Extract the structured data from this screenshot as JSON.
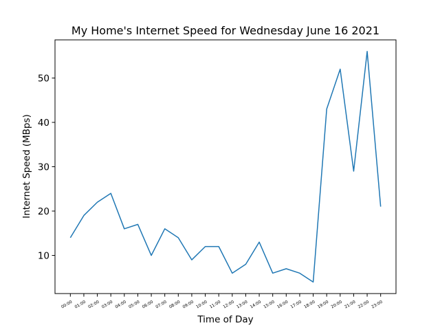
{
  "chart_data": {
    "type": "line",
    "title": "My Home's Internet Speed for Wednesday June 16 2021",
    "xlabel": "Time of Day",
    "ylabel": "Internet Speed (MBps)",
    "categories": [
      "00:00",
      "01:00",
      "02:00",
      "03:00",
      "04:00",
      "05:00",
      "06:00",
      "07:00",
      "08:00",
      "09:00",
      "10:00",
      "11:00",
      "12:00",
      "13:00",
      "14:00",
      "15:00",
      "16:00",
      "17:00",
      "18:00",
      "19:00",
      "20:00",
      "21:00",
      "22:00",
      "23:00"
    ],
    "series": [
      {
        "values": [
          14,
          19,
          22,
          24,
          16,
          17,
          10,
          16,
          14,
          9,
          12,
          12,
          6,
          8,
          13,
          6,
          7,
          6,
          4,
          43,
          52,
          29,
          56,
          21
        ],
        "color": "#1f77b4"
      }
    ],
    "yticks": [
      10,
      20,
      30,
      40,
      50
    ],
    "ylim": [
      1.4,
      58.6
    ],
    "grid": false,
    "legend": "none"
  }
}
